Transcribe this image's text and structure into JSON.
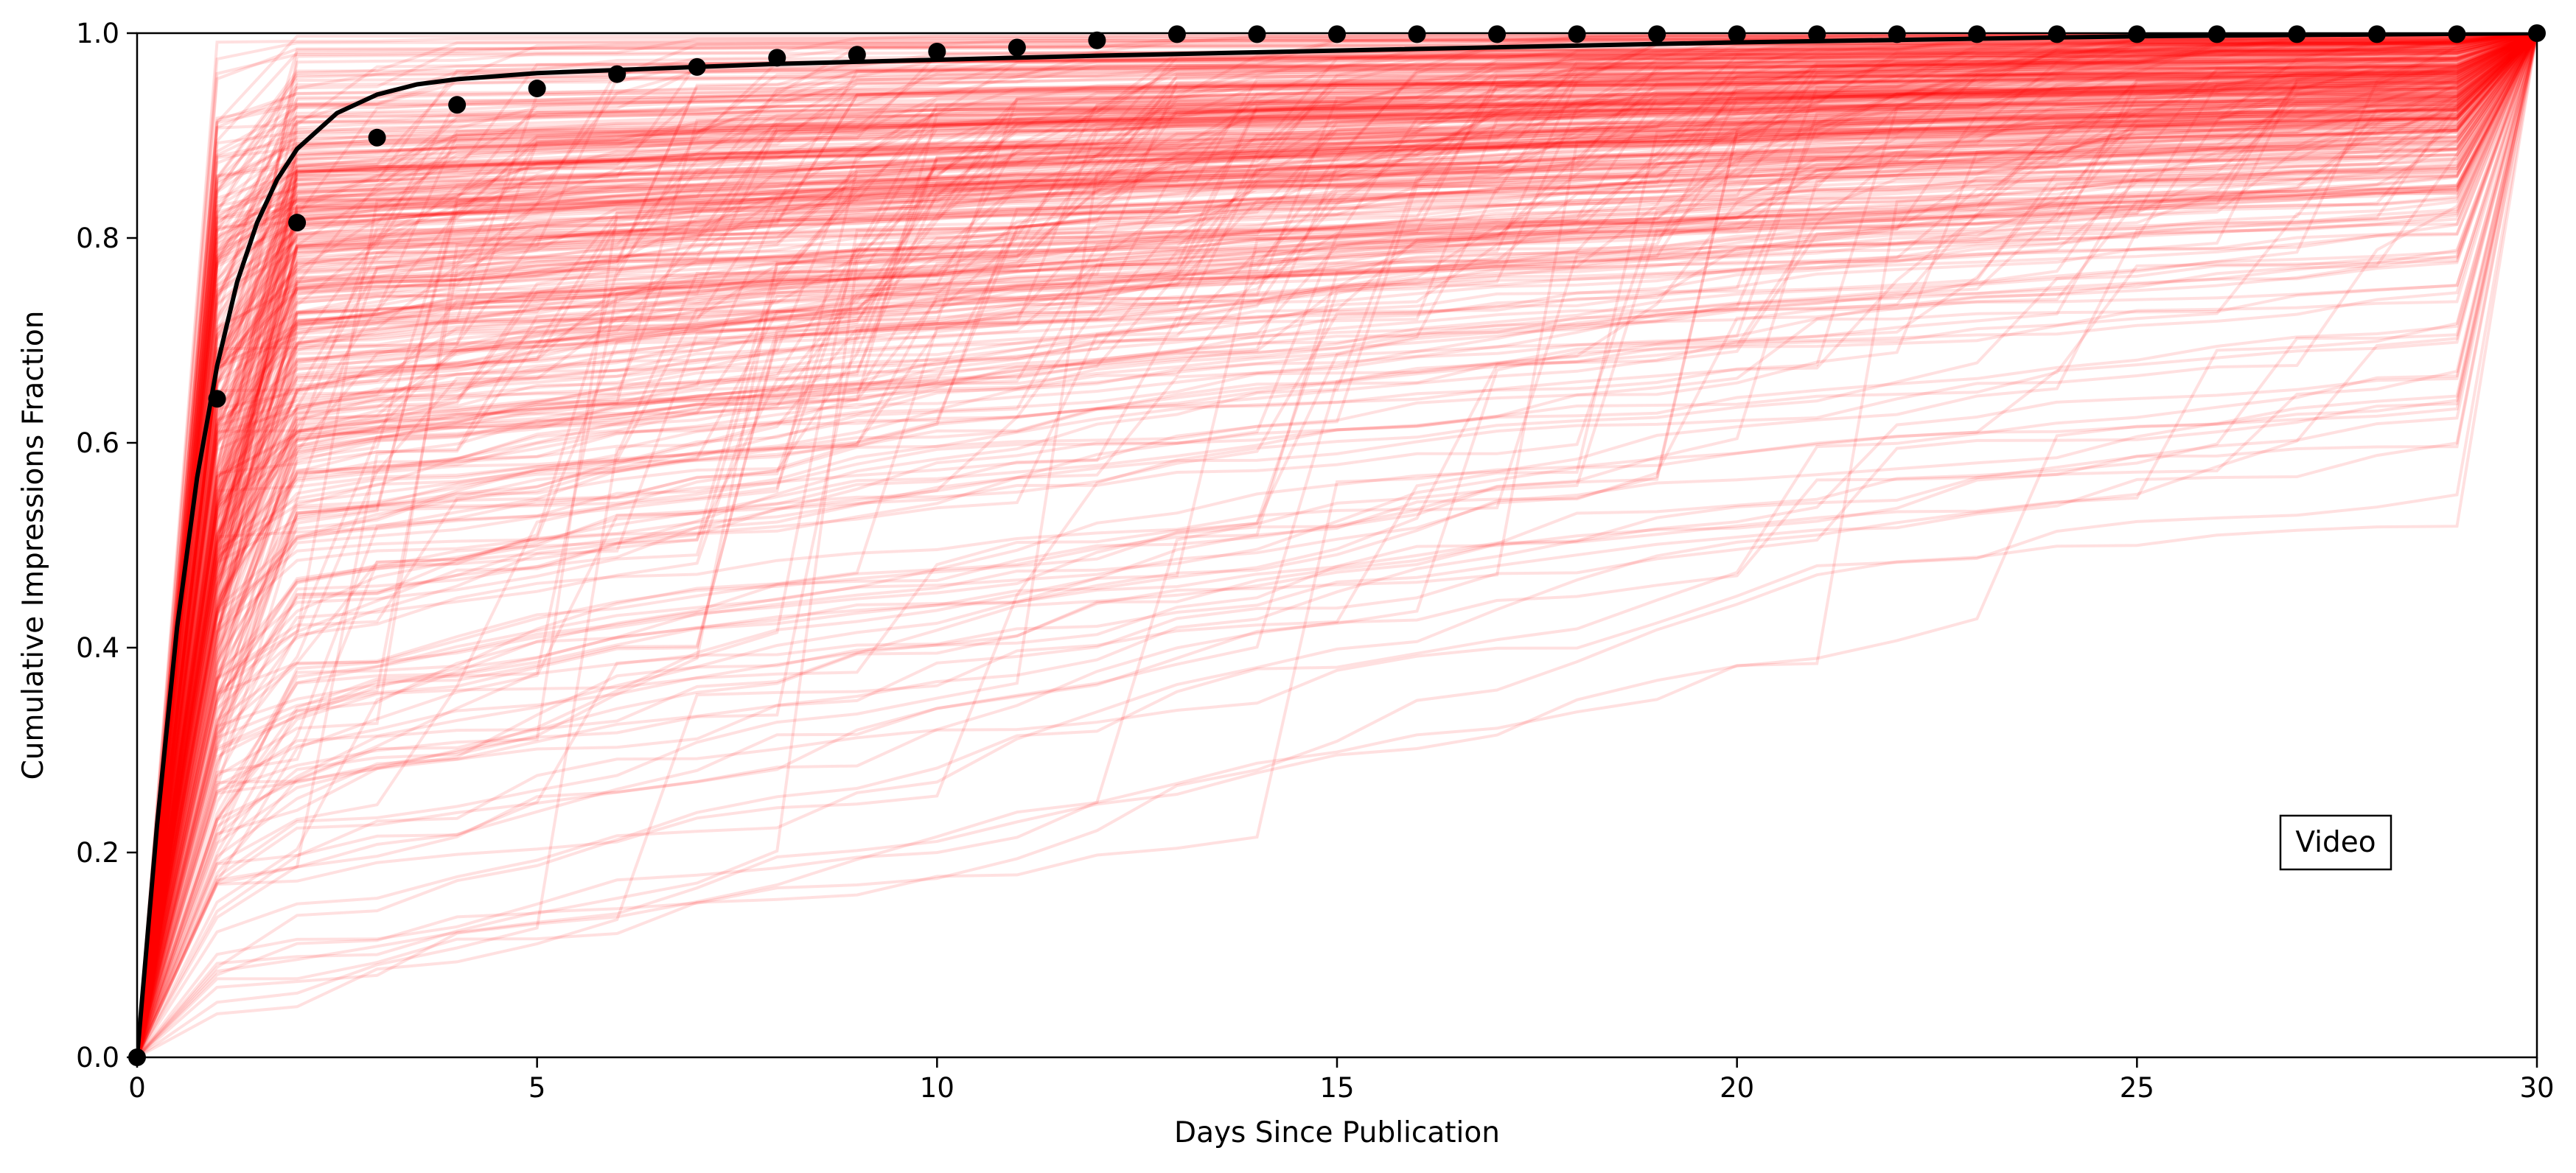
{
  "chart_data": {
    "type": "line",
    "title": "",
    "xlabel": "Days Since Publication",
    "ylabel": "Cumulative Impressions Fraction",
    "xlim": [
      0,
      30
    ],
    "ylim": [
      0.0,
      1.0
    ],
    "xticks": [
      0,
      5,
      10,
      15,
      20,
      25,
      30
    ],
    "yticks": [
      0.0,
      0.2,
      0.4,
      0.6,
      0.8,
      1.0
    ],
    "xtick_labels": [
      "0",
      "5",
      "10",
      "15",
      "20",
      "25",
      "30"
    ],
    "ytick_labels": [
      "0.0",
      "0.2",
      "0.4",
      "0.6",
      "0.8",
      "1.0"
    ],
    "grid": false,
    "legend": "none",
    "annotation": {
      "text": "Video",
      "x": 27.7,
      "y": 0.21
    },
    "colors": {
      "individual": "#ff0000",
      "mean": "#000000",
      "fit": "#000000"
    },
    "individual_series_count": 400,
    "mean_points": {
      "x": [
        0,
        1,
        2,
        3,
        4,
        5,
        6,
        7,
        8,
        9,
        10,
        11,
        12,
        13,
        14,
        15,
        16,
        17,
        18,
        19,
        20,
        21,
        22,
        23,
        24,
        25,
        26,
        27,
        28,
        29,
        30
      ],
      "y": [
        0.0,
        0.643,
        0.815,
        0.898,
        0.93,
        0.946,
        0.96,
        0.967,
        0.976,
        0.979,
        0.982,
        0.986,
        0.993,
        0.999,
        0.999,
        0.999,
        0.999,
        0.999,
        0.999,
        0.999,
        0.999,
        0.999,
        0.999,
        0.999,
        0.999,
        0.999,
        0.999,
        0.999,
        0.999,
        0.999,
        1.0
      ]
    },
    "fit_curve": {
      "x": [
        0,
        0.25,
        0.5,
        0.75,
        1,
        1.25,
        1.5,
        1.75,
        2,
        2.5,
        3,
        3.5,
        4,
        5,
        6,
        7,
        8,
        10,
        12,
        15,
        20,
        25,
        30
      ],
      "y": [
        0.0,
        0.227,
        0.42,
        0.566,
        0.675,
        0.757,
        0.815,
        0.857,
        0.887,
        0.922,
        0.94,
        0.95,
        0.955,
        0.961,
        0.964,
        0.967,
        0.97,
        0.974,
        0.978,
        0.983,
        0.991,
        0.997,
        1.0
      ]
    }
  }
}
